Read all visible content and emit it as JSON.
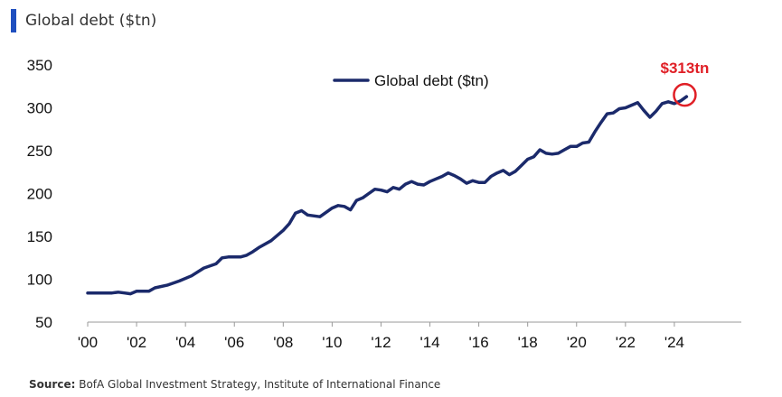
{
  "header": {
    "title": "Global debt ($tn)",
    "accent": "#1f4fbf"
  },
  "source": {
    "label": "Source:",
    "text": "BofA Global Investment Strategy, Institute of International Finance"
  },
  "chart_data": {
    "type": "line",
    "title": "Global debt ($tn)",
    "xlabel": "",
    "ylabel": "",
    "xlim": [
      2000,
      2026
    ],
    "ylim": [
      50,
      350
    ],
    "yticks": [
      50,
      100,
      150,
      200,
      250,
      300,
      350
    ],
    "xticks": [
      {
        "value": 2000,
        "label": "'00"
      },
      {
        "value": 2002,
        "label": "'02"
      },
      {
        "value": 2004,
        "label": "'04"
      },
      {
        "value": 2006,
        "label": "'06"
      },
      {
        "value": 2008,
        "label": "'08"
      },
      {
        "value": 2010,
        "label": "'10"
      },
      {
        "value": 2012,
        "label": "'12"
      },
      {
        "value": 2014,
        "label": "'14"
      },
      {
        "value": 2016,
        "label": "'16"
      },
      {
        "value": 2018,
        "label": "'18"
      },
      {
        "value": 2020,
        "label": "'20"
      },
      {
        "value": 2022,
        "label": "'22"
      },
      {
        "value": 2024,
        "label": "'24"
      }
    ],
    "grid": false,
    "legend": "top-center",
    "series": [
      {
        "name": "Global debt ($tn)",
        "color": "#1b2a6b",
        "points": [
          [
            2000.0,
            84
          ],
          [
            2000.5,
            84
          ],
          [
            2001.0,
            84
          ],
          [
            2001.25,
            85
          ],
          [
            2001.5,
            84
          ],
          [
            2001.75,
            83
          ],
          [
            2002.0,
            86
          ],
          [
            2002.5,
            86
          ],
          [
            2002.75,
            90
          ],
          [
            2003.25,
            93
          ],
          [
            2003.75,
            98
          ],
          [
            2004.25,
            104
          ],
          [
            2004.75,
            113
          ],
          [
            2005.25,
            118
          ],
          [
            2005.5,
            125
          ],
          [
            2005.75,
            126
          ],
          [
            2006.0,
            126
          ],
          [
            2006.25,
            126
          ],
          [
            2006.5,
            128
          ],
          [
            2006.75,
            132
          ],
          [
            2007.0,
            137
          ],
          [
            2007.5,
            145
          ],
          [
            2008.0,
            157
          ],
          [
            2008.25,
            165
          ],
          [
            2008.5,
            177
          ],
          [
            2008.75,
            180
          ],
          [
            2009.0,
            175
          ],
          [
            2009.5,
            173
          ],
          [
            2009.75,
            178
          ],
          [
            2010.0,
            183
          ],
          [
            2010.25,
            186
          ],
          [
            2010.5,
            185
          ],
          [
            2010.75,
            181
          ],
          [
            2011.0,
            192
          ],
          [
            2011.25,
            195
          ],
          [
            2011.5,
            200
          ],
          [
            2011.75,
            205
          ],
          [
            2012.0,
            204
          ],
          [
            2012.25,
            202
          ],
          [
            2012.5,
            207
          ],
          [
            2012.75,
            205
          ],
          [
            2013.0,
            211
          ],
          [
            2013.25,
            214
          ],
          [
            2013.5,
            211
          ],
          [
            2013.75,
            210
          ],
          [
            2014.0,
            214
          ],
          [
            2014.25,
            217
          ],
          [
            2014.5,
            220
          ],
          [
            2014.75,
            224
          ],
          [
            2015.0,
            221
          ],
          [
            2015.25,
            217
          ],
          [
            2015.5,
            212
          ],
          [
            2015.75,
            215
          ],
          [
            2016.0,
            213
          ],
          [
            2016.25,
            213
          ],
          [
            2016.5,
            220
          ],
          [
            2016.75,
            224
          ],
          [
            2017.0,
            227
          ],
          [
            2017.25,
            222
          ],
          [
            2017.5,
            226
          ],
          [
            2017.75,
            233
          ],
          [
            2018.0,
            240
          ],
          [
            2018.25,
            243
          ],
          [
            2018.5,
            251
          ],
          [
            2018.75,
            247
          ],
          [
            2019.0,
            246
          ],
          [
            2019.25,
            247
          ],
          [
            2019.5,
            251
          ],
          [
            2019.75,
            255
          ],
          [
            2020.0,
            255
          ],
          [
            2020.25,
            259
          ],
          [
            2020.5,
            260
          ],
          [
            2020.75,
            272
          ],
          [
            2021.0,
            283
          ],
          [
            2021.25,
            293
          ],
          [
            2021.5,
            294
          ],
          [
            2021.75,
            299
          ],
          [
            2022.0,
            300
          ],
          [
            2022.25,
            303
          ],
          [
            2022.5,
            306
          ],
          [
            2022.75,
            297
          ],
          [
            2023.0,
            289
          ],
          [
            2023.25,
            296
          ],
          [
            2023.5,
            305
          ],
          [
            2023.75,
            307
          ],
          [
            2024.0,
            305
          ],
          [
            2024.25,
            308
          ],
          [
            2024.5,
            313
          ]
        ]
      }
    ],
    "annotation": {
      "text": "$313tn",
      "x": 2024.5,
      "y": 313,
      "color": "#e01f26"
    }
  }
}
